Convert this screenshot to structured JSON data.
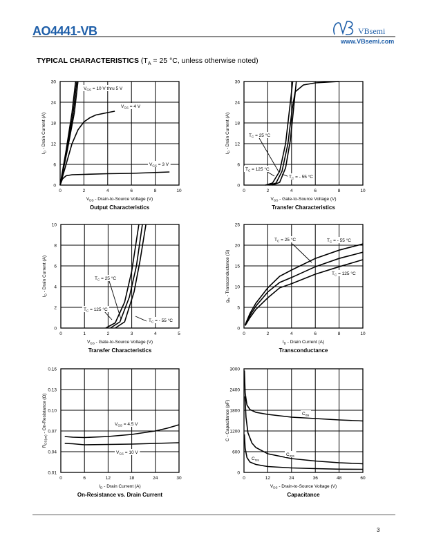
{
  "header": {
    "part_number": "AO4441-VB",
    "brand": "VBsemi",
    "website": "www.VBsemi.com"
  },
  "section": {
    "heading": "TYPICAL CHARACTERISTICS",
    "condition_prefix": "(T",
    "condition_sub": "A",
    "condition_rest": " = 25 °C, unless otherwise noted)"
  },
  "footer": {
    "page_number": "3"
  },
  "chart_data": [
    {
      "type": "line",
      "title": "Output Characteristics",
      "xlabel": "V_{DS} - Drain-to-Source Voltage (V)",
      "ylabel": "I_{D} - Drain Current (A)",
      "xlim": [
        0,
        10
      ],
      "ylim": [
        0,
        30
      ],
      "xticks": [
        0,
        2,
        4,
        6,
        8,
        10
      ],
      "yticks": [
        0,
        6,
        12,
        18,
        24,
        30
      ],
      "grid": true,
      "series": [
        {
          "name": "V_{GS} = 10 V thru 5 V",
          "points": [
            [
              0,
              0
            ],
            [
              0.5,
              10
            ],
            [
              1.0,
              21
            ],
            [
              1.3,
              30
            ]
          ]
        },
        {
          "name": "V_{GS} = 10 V thru 5 V (b)",
          "points": [
            [
              0,
              0
            ],
            [
              0.55,
              10
            ],
            [
              1.1,
              21
            ],
            [
              1.4,
              30
            ]
          ]
        },
        {
          "name": "V_{GS} = 10 V thru 5 V (c)",
          "points": [
            [
              0,
              0
            ],
            [
              0.6,
              10
            ],
            [
              1.2,
              21
            ],
            [
              1.5,
              30
            ]
          ]
        },
        {
          "name": "V_{GS} = 4 V",
          "points": [
            [
              0,
              0
            ],
            [
              0.5,
              6
            ],
            [
              1,
              12
            ],
            [
              1.5,
              16
            ],
            [
              2,
              18.3
            ],
            [
              2.5,
              19.5
            ],
            [
              3,
              20.3
            ],
            [
              4,
              21
            ],
            [
              4.6,
              21.4
            ]
          ]
        },
        {
          "name": "V_{GS} = 3 V",
          "points": [
            [
              0,
              0
            ],
            [
              0.2,
              1.8
            ],
            [
              0.5,
              2.7
            ],
            [
              1,
              3
            ],
            [
              2,
              3.1
            ],
            [
              4,
              3.3
            ],
            [
              6,
              3.4
            ],
            [
              9.2,
              3.8
            ]
          ]
        }
      ],
      "annotations": [
        "V_{GS} = 10 V thru 5 V",
        "V_{GS} = 4 V",
        "V_{GS} = 3 V"
      ]
    },
    {
      "type": "line",
      "title": "Transfer Characteristics",
      "xlabel": "V_{GS} - Gate-to-Source Voltage (V)",
      "ylabel": "I_{D} - Drain Current (A)",
      "xlim": [
        0,
        10
      ],
      "ylim": [
        0,
        30
      ],
      "xticks": [
        0,
        2,
        4,
        6,
        8,
        10
      ],
      "yticks": [
        0,
        6,
        12,
        18,
        24,
        30
      ],
      "grid": true,
      "series": [
        {
          "name": "T_{C} = 125 °C",
          "points": [
            [
              1.8,
              0
            ],
            [
              2.4,
              0.6
            ],
            [
              3,
              4
            ],
            [
              3.5,
              12
            ],
            [
              3.9,
              24
            ],
            [
              4.1,
              30
            ]
          ]
        },
        {
          "name": "T_{C} = 25 °C",
          "points": [
            [
              2.1,
              0
            ],
            [
              2.7,
              0.6
            ],
            [
              3.2,
              4
            ],
            [
              3.7,
              12
            ],
            [
              4.05,
              22
            ],
            [
              4.3,
              27
            ],
            [
              5,
              29
            ],
            [
              6,
              29.6
            ],
            [
              8,
              30
            ]
          ]
        },
        {
          "name": "T_{C} = - 55 °C",
          "points": [
            [
              2.4,
              0
            ],
            [
              3,
              0.8
            ],
            [
              3.5,
              5
            ],
            [
              3.9,
              13
            ],
            [
              4.2,
              23
            ],
            [
              4.4,
              30
            ]
          ]
        }
      ],
      "annotations": [
        "T_{C} = 25 °C",
        "T_{C} = 125 °C",
        "T_{C} = - 55 °C"
      ]
    },
    {
      "type": "line",
      "title": "Transfer Characteristics",
      "xlabel": "V_{GS} - Gate-to-Source Voltage (V)",
      "ylabel": "I_{D} - Drain Current (A)",
      "xlim": [
        0,
        5
      ],
      "ylim": [
        0,
        10
      ],
      "xticks": [
        0,
        1,
        2,
        3,
        4,
        5
      ],
      "yticks": [
        0,
        2,
        4,
        6,
        8,
        10
      ],
      "grid": true,
      "series": [
        {
          "name": "T_{C} = 125 °C",
          "points": [
            [
              1.9,
              0
            ],
            [
              2.3,
              0.5
            ],
            [
              2.7,
              2.5
            ],
            [
              3.0,
              5.5
            ],
            [
              3.3,
              10
            ]
          ]
        },
        {
          "name": "T_{C} = 25 °C",
          "points": [
            [
              2.1,
              0
            ],
            [
              2.5,
              0.6
            ],
            [
              2.9,
              3
            ],
            [
              3.2,
              6
            ],
            [
              3.45,
              10
            ]
          ]
        },
        {
          "name": "T_{C} = - 55 °C",
          "points": [
            [
              2.3,
              0
            ],
            [
              2.7,
              0.6
            ],
            [
              3.1,
              3.5
            ],
            [
              3.35,
              6.5
            ],
            [
              3.6,
              10
            ]
          ]
        }
      ],
      "annotations": [
        "T_{C} = 25 °C",
        "T_{C} = 125 °C",
        "T_{C} = - 55 °C"
      ]
    },
    {
      "type": "line",
      "title": "Transconductance",
      "xlabel": "I_{D} - Drain Current (A)",
      "ylabel": "g_{fs} - Transconductance (S)",
      "xlim": [
        0,
        10
      ],
      "ylim": [
        0,
        25
      ],
      "xticks": [
        0,
        2,
        4,
        6,
        8,
        10
      ],
      "yticks": [
        0,
        5,
        10,
        15,
        20,
        25
      ],
      "grid": true,
      "series": [
        {
          "name": "T_{C} = - 55 °C",
          "points": [
            [
              0.1,
              0.8
            ],
            [
              0.5,
              3.5
            ],
            [
              1,
              6
            ],
            [
              2,
              9.7
            ],
            [
              3,
              12.5
            ],
            [
              4,
              14
            ],
            [
              6,
              16.8
            ],
            [
              8,
              18.8
            ],
            [
              10,
              20.3
            ]
          ]
        },
        {
          "name": "T_{C} = 25 °C",
          "points": [
            [
              0.1,
              0.7
            ],
            [
              0.5,
              3
            ],
            [
              1,
              5.3
            ],
            [
              2,
              8.7
            ],
            [
              3,
              11
            ],
            [
              4,
              12.2
            ],
            [
              6,
              14.8
            ],
            [
              8,
              16.8
            ],
            [
              10,
              18.3
            ]
          ]
        },
        {
          "name": "T_{C} = 125 °C",
          "points": [
            [
              0.1,
              0.6
            ],
            [
              0.5,
              2.5
            ],
            [
              1,
              4.5
            ],
            [
              2,
              7.3
            ],
            [
              3,
              9.7
            ],
            [
              4,
              10.7
            ],
            [
              6,
              13
            ],
            [
              8,
              14.8
            ],
            [
              10,
              16.5
            ]
          ]
        }
      ],
      "annotations": [
        "T_{C} = 25 °C",
        "T_{C} = - 55 °C",
        "T_{C} = 125 °C"
      ]
    },
    {
      "type": "line",
      "title": "On-Resistance vs. Drain Current",
      "xlabel": "I_{D} - Drain Current (A)",
      "ylabel": "R_{DS(on)} - On-Resistance (Ω)",
      "xlim": [
        0,
        30
      ],
      "ylim": [
        0.01,
        0.16
      ],
      "xticks": [
        0,
        6,
        12,
        18,
        24,
        30
      ],
      "yticks": [
        0.01,
        0.04,
        0.07,
        0.1,
        0.13,
        0.16
      ],
      "ytick_labels": [
        "0.01",
        "0.04",
        "0.07",
        "0.10",
        "0.13",
        "0.16"
      ],
      "grid": true,
      "series": [
        {
          "name": "V_{GS} = 4.5 V",
          "points": [
            [
              1,
              0.062
            ],
            [
              3,
              0.061
            ],
            [
              6,
              0.0605
            ],
            [
              12,
              0.062
            ],
            [
              18,
              0.065
            ],
            [
              24,
              0.07
            ],
            [
              27,
              0.074
            ],
            [
              30,
              0.079
            ]
          ]
        },
        {
          "name": "V_{GS} = 10 V",
          "points": [
            [
              1,
              0.052
            ],
            [
              3,
              0.0515
            ],
            [
              6,
              0.05
            ],
            [
              12,
              0.0505
            ],
            [
              18,
              0.051
            ],
            [
              24,
              0.052
            ],
            [
              30,
              0.053
            ]
          ]
        }
      ],
      "annotations": [
        "V_{GS} = 4.5 V",
        "V_{GS} = 10 V"
      ]
    },
    {
      "type": "line",
      "title": "Capacitance",
      "xlabel": "V_{DS} - Drain-to-Source Voltage (V)",
      "ylabel": "C - Capacitance (pF)",
      "xlim": [
        0,
        60
      ],
      "ylim": [
        0,
        3000
      ],
      "xticks": [
        0,
        12,
        24,
        36,
        48,
        60
      ],
      "yticks": [
        0,
        600,
        1200,
        1800,
        2400,
        3000
      ],
      "grid": true,
      "series": [
        {
          "name": "C_{iss}",
          "points": [
            [
              0.2,
              2950
            ],
            [
              0.6,
              2300
            ],
            [
              1.5,
              1950
            ],
            [
              3,
              1820
            ],
            [
              6,
              1740
            ],
            [
              12,
              1680
            ],
            [
              24,
              1600
            ],
            [
              36,
              1560
            ],
            [
              48,
              1520
            ],
            [
              60,
              1490
            ]
          ]
        },
        {
          "name": "C_{oss}",
          "points": [
            [
              0.5,
              2200
            ],
            [
              1,
              1600
            ],
            [
              2,
              1150
            ],
            [
              4,
              850
            ],
            [
              6,
              720
            ],
            [
              12,
              540
            ],
            [
              24,
              400
            ],
            [
              36,
              330
            ],
            [
              48,
              280
            ],
            [
              60,
              250
            ]
          ]
        },
        {
          "name": "C_{rss}",
          "points": [
            [
              0.2,
              1100
            ],
            [
              0.6,
              700
            ],
            [
              1.5,
              430
            ],
            [
              3,
              300
            ],
            [
              6,
              230
            ],
            [
              12,
              170
            ],
            [
              24,
              130
            ],
            [
              36,
              110
            ],
            [
              48,
              95
            ],
            [
              60,
              90
            ]
          ]
        }
      ],
      "annotations": [
        "C_{iss}",
        "C_{oss}",
        "C_{rss}"
      ]
    }
  ]
}
